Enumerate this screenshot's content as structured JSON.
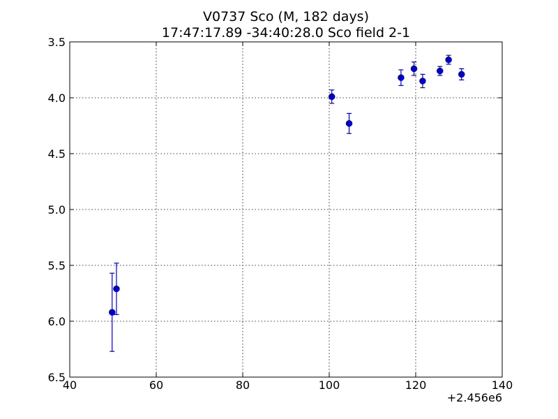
{
  "chart_data": {
    "type": "scatter",
    "title": "V0737 Sco  (M, 182 days)",
    "subtitle": "17:47:17.89 -34:40:28.0 Sco field 2-1",
    "xlabel": "",
    "ylabel": "",
    "x_offset_label": "+2.456e6",
    "xlim": [
      40,
      140
    ],
    "ylim": [
      6.5,
      3.5
    ],
    "y_inverted": true,
    "grid": true,
    "x_ticks": [
      40,
      60,
      80,
      100,
      120,
      140
    ],
    "x_tick_labels": [
      "40",
      "60",
      "80",
      "100",
      "120",
      "140"
    ],
    "y_ticks": [
      3.5,
      4.0,
      4.5,
      5.0,
      5.5,
      6.0,
      6.5
    ],
    "y_tick_labels": [
      "3.5",
      "4.0",
      "4.5",
      "5.0",
      "5.5",
      "6.0",
      "6.5"
    ],
    "marker_color": "#0000cc",
    "series": [
      {
        "points": [
          {
            "x": 49.8,
            "y": 5.92,
            "err": 0.35
          },
          {
            "x": 50.8,
            "y": 5.71,
            "err": 0.23
          },
          {
            "x": 100.6,
            "y": 3.99,
            "err": 0.06
          },
          {
            "x": 104.6,
            "y": 4.23,
            "err": 0.09
          },
          {
            "x": 116.6,
            "y": 3.82,
            "err": 0.07
          },
          {
            "x": 119.6,
            "y": 3.74,
            "err": 0.06
          },
          {
            "x": 121.6,
            "y": 3.85,
            "err": 0.06
          },
          {
            "x": 125.6,
            "y": 3.76,
            "err": 0.04
          },
          {
            "x": 127.6,
            "y": 3.66,
            "err": 0.04
          },
          {
            "x": 130.6,
            "y": 3.79,
            "err": 0.05
          }
        ]
      }
    ]
  }
}
